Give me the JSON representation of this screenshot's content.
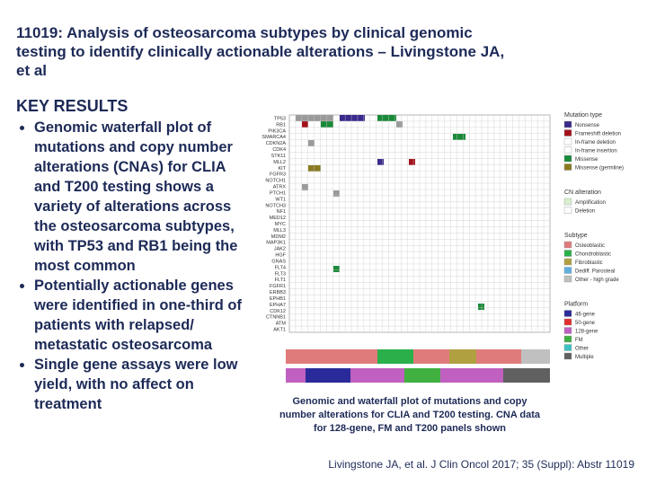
{
  "header": {
    "title": "11019: Analysis of osteosarcoma subtypes by clinical genomic testing to identify clinically actionable alterations – Livingstone JA, et al"
  },
  "key_results": {
    "heading": "KEY RESULTS",
    "bullets": [
      "Genomic waterfall plot of mutations and copy number alterations (CNAs) for CLIA and T200 testing shows a variety of alterations across the osteosarcoma subtypes, with TP53 and RB1 being the most common",
      "Potentially actionable genes were identified in one-third of patients with relapsed/ metastatic osteosarcoma",
      "Single gene assays were low yield, with no affect on treatment"
    ]
  },
  "figure": {
    "genes": [
      "TP53",
      "RB1",
      "PIK3CA",
      "SMARCA4",
      "CDKN2A",
      "CDK4",
      "STK11",
      "MLL2",
      "KIT",
      "FGFR3",
      "NOTCH1",
      "ATRX",
      "PTCH1",
      "WT1",
      "NOTCH3",
      "NF1",
      "MED12",
      "MYC",
      "MLL3",
      "MDM2",
      "MAP3K1",
      "JAK2",
      "HGF",
      "GNAS",
      "FLT4",
      "FLT3",
      "FLT1",
      "FGFR1",
      "ERBB3",
      "EPHB1",
      "EPHA7",
      "CDK12",
      "CTNNB1",
      "ATM",
      "AKT1"
    ],
    "legends": [
      {
        "title": "Mutation type",
        "items": [
          {
            "label": "Nonsense",
            "color": "#3a2a8c"
          },
          {
            "label": "Frameshift deletion",
            "color": "#a3121a"
          },
          {
            "label": "In-frame deletion",
            "color": "#ffffff"
          },
          {
            "label": "In-frame insertion",
            "color": "#ffffff"
          },
          {
            "label": "Missense",
            "color": "#1a8a3a"
          },
          {
            "label": "Missense (germline)",
            "color": "#8a7a20"
          }
        ]
      },
      {
        "title": "CN alteration",
        "items": [
          {
            "label": "Amplification",
            "color": "#d8f0d0"
          },
          {
            "label": "Deletion",
            "color": "#ffffff"
          }
        ]
      },
      {
        "title": "Subtype",
        "items": [
          {
            "label": "Osteoblastic",
            "color": "#e07b7b"
          },
          {
            "label": "Chondroblastic",
            "color": "#2ab04a"
          },
          {
            "label": "Fibroblastic",
            "color": "#b0a040"
          },
          {
            "label": "Dediff. Parosteal",
            "color": "#60b0e0"
          },
          {
            "label": "Other - high grade",
            "color": "#c0c0c0"
          }
        ]
      },
      {
        "title": "Platform",
        "items": [
          {
            "label": "46-gene",
            "color": "#2a2a9a"
          },
          {
            "label": "50-gene",
            "color": "#e03030"
          },
          {
            "label": "128-gene",
            "color": "#c060c0"
          },
          {
            "label": "FM",
            "color": "#40b040"
          },
          {
            "label": "Other",
            "color": "#40c0c0"
          },
          {
            "label": "Multiple",
            "color": "#606060"
          }
        ]
      }
    ],
    "caption": "Genomic and waterfall plot of mutations and copy number alterations for CLIA and T200 testing. CNA data for 128-gene, FM and T200 panels shown"
  },
  "citation": "Livingstone JA, et al. J Clin Oncol 2017; 35 (Suppl): Abstr 11019"
}
